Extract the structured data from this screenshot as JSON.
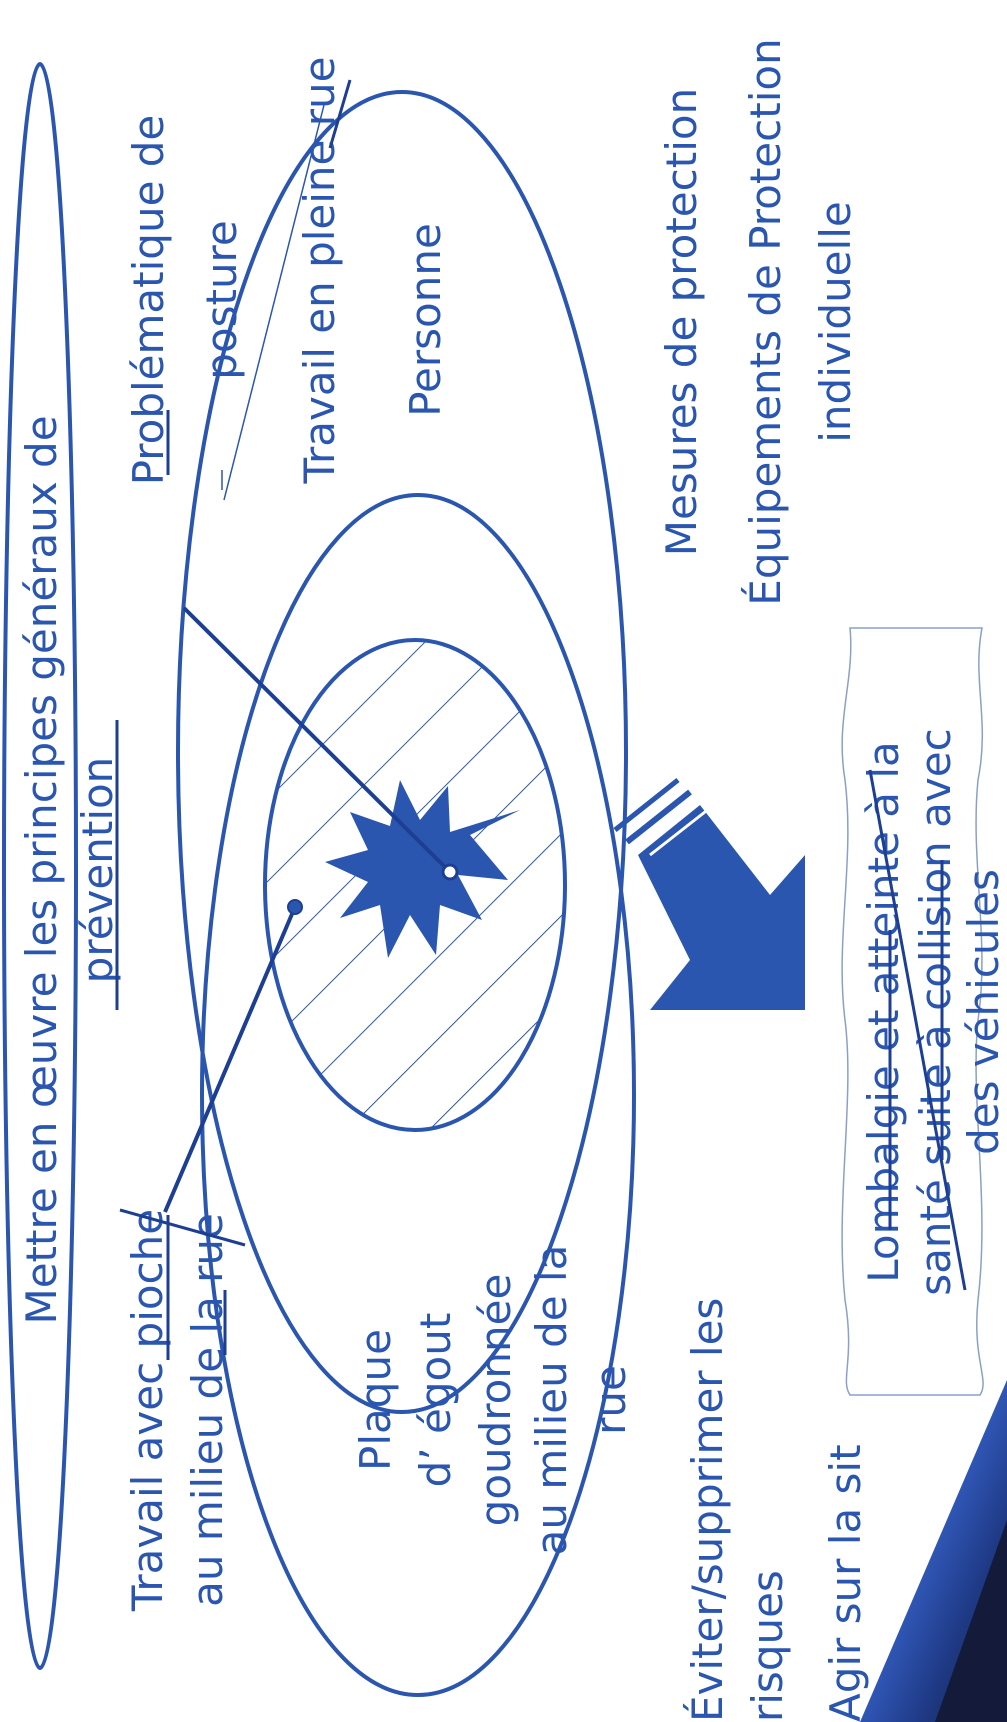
{
  "colors": {
    "ink": "#2a56b0",
    "ink_dark": "#1c3f94",
    "hatch": "#2a56b0",
    "corner_dark": "#141a3a",
    "corner_blue": "#3c6bd8"
  },
  "labels": {
    "principes": "Mettre en œuvre les principes généraux de",
    "prevention": "prévention",
    "problematique": "Problématique de",
    "posture": "posture",
    "plein_rue": "Travail en pleine rue",
    "personne": "Personne",
    "mesures": "Mesures de protection",
    "epi_1": "Équipements de Protection",
    "epi_2": "individuelle",
    "pioche_1": "Travail avec pioche",
    "pioche_2": "au milieu de la rue",
    "plaque_1": "Plaque",
    "plaque_2": "d’ égout",
    "plaque_3": "goudronnée",
    "plaque_4": "au milieu de la",
    "plaque_5": "rue",
    "eviter_1": "Éviter/supprimer les",
    "eviter_2": "risques",
    "agir": "Agir sur la sit",
    "lombalgie_1": "Lombalgie et atteinte à la",
    "lombalgie_2": "santé suite à collision avec",
    "lombalgie_3": "des véhicules"
  }
}
